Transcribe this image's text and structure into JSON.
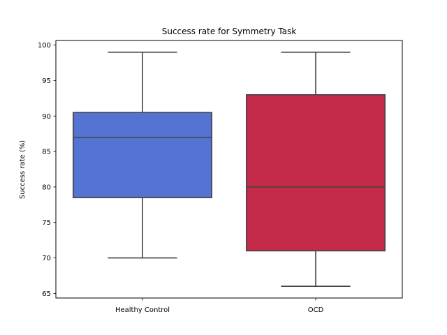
{
  "chart_data": {
    "type": "box",
    "title": "Success rate for Symmetry Task",
    "xlabel": "",
    "ylabel": "Success rate (%)",
    "ylim": [
      64.35,
      100.65
    ],
    "yticks": [
      65,
      70,
      75,
      80,
      85,
      90,
      95,
      100
    ],
    "grid": false,
    "categories": [
      "Healthy Control",
      "OCD"
    ],
    "boxes": [
      {
        "category": "Healthy Control",
        "min": 70,
        "q1": 78.5,
        "median": 87,
        "q3": 90.5,
        "max": 99,
        "color": "#5573d3"
      },
      {
        "category": "OCD",
        "min": 66,
        "q1": 71,
        "median": 80,
        "q3": 93,
        "max": 99,
        "color": "#c42b4b"
      }
    ],
    "line_color": "#444444"
  }
}
